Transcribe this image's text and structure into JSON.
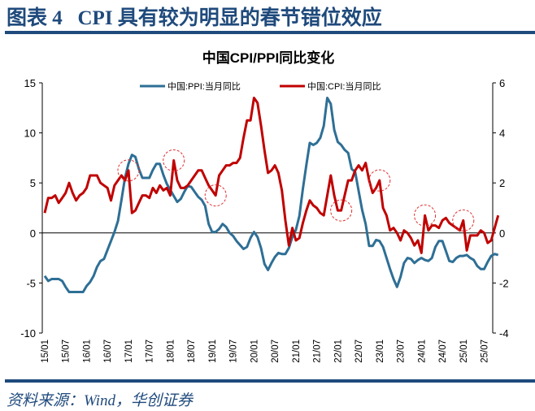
{
  "header": {
    "title": "图表 4   CPI 具有较为明显的春节错位效应"
  },
  "source": "资料来源：Wind，华创证券",
  "colors": {
    "ppi": "#2e6f95",
    "cpi": "#c00000",
    "brand": "#1f4a7c"
  },
  "chart_data": {
    "type": "line",
    "title": "中国CPI/PPI同比变化",
    "legend_position": "top",
    "x_start": "2015-01",
    "x_ticks": [
      "15/01",
      "15/07",
      "16/01",
      "16/07",
      "17/01",
      "17/07",
      "18/01",
      "18/07",
      "19/01",
      "19/07",
      "20/01",
      "20/07",
      "21/01",
      "21/07",
      "22/01",
      "22/07",
      "23/01",
      "23/07",
      "24/01",
      "24/07",
      "25/01",
      "25/07"
    ],
    "y_left": {
      "min": -10,
      "max": 15,
      "ticks": [
        "15",
        "10",
        "5",
        "0",
        "-5",
        "-10"
      ]
    },
    "y_right": {
      "min": -4,
      "max": 6,
      "ticks": [
        "6",
        "4",
        "2",
        "0",
        "-2",
        "-4"
      ]
    },
    "series": [
      {
        "name": "中国:PPI:当月同比",
        "axis": "left",
        "values": [
          -4.3,
          -4.8,
          -4.6,
          -4.6,
          -4.6,
          -4.8,
          -5.4,
          -5.9,
          -5.9,
          -5.9,
          -5.9,
          -5.9,
          -5.3,
          -4.9,
          -4.3,
          -3.4,
          -2.8,
          -2.6,
          -1.7,
          -0.8,
          0.1,
          1.2,
          3.3,
          5.5,
          6.9,
          7.8,
          7.6,
          6.4,
          5.5,
          5.5,
          5.5,
          6.3,
          6.9,
          6.9,
          5.8,
          4.9,
          4.3,
          3.7,
          3.1,
          3.4,
          4.1,
          4.7,
          4.6,
          4.1,
          3.6,
          3.3,
          2.7,
          0.9,
          0.1,
          0.1,
          0.4,
          0.9,
          0.6,
          0,
          -0.3,
          -0.8,
          -1.2,
          -1.6,
          -1.4,
          -0.5,
          0.1,
          -0.4,
          -1.5,
          -3.1,
          -3.7,
          -3.0,
          -2.4,
          -2.0,
          -2.1,
          -2.1,
          -1.5,
          -0.4,
          0.3,
          1.7,
          4.4,
          6.8,
          9.0,
          8.8,
          9.0,
          9.5,
          10.7,
          13.5,
          12.9,
          10.3,
          9.1,
          8.8,
          8.3,
          8.0,
          6.4,
          6.1,
          4.2,
          2.3,
          0.9,
          -1.3,
          -1.3,
          -0.7,
          -0.8,
          -1.4,
          -2.5,
          -3.6,
          -4.6,
          -5.4,
          -4.4,
          -3.0,
          -2.5,
          -2.6,
          -3.0,
          -2.7,
          -2.5,
          -2.7,
          -2.8,
          -2.5,
          -1.4,
          -0.8,
          -0.8,
          -1.8,
          -2.8,
          -2.9,
          -2.5,
          -2.3,
          -2.3,
          -2.2,
          -2.5,
          -2.7,
          -3.3,
          -3.6,
          -3.6,
          -2.9,
          -2.3,
          -2.1,
          -2.2
        ]
      },
      {
        "name": "中国:CPI:当月同比",
        "axis": "right",
        "values": [
          0.8,
          1.4,
          1.4,
          1.5,
          1.2,
          1.4,
          1.6,
          2.0,
          1.6,
          1.3,
          1.5,
          1.6,
          1.8,
          2.3,
          2.3,
          2.3,
          2.0,
          1.9,
          1.8,
          1.3,
          1.9,
          2.1,
          2.3,
          2.1,
          2.5,
          0.8,
          0.9,
          1.2,
          1.5,
          1.5,
          1.4,
          1.8,
          1.6,
          1.9,
          1.7,
          1.8,
          1.5,
          2.9,
          2.1,
          1.8,
          1.8,
          1.9,
          2.1,
          2.3,
          2.5,
          2.5,
          2.2,
          1.9,
          1.7,
          1.5,
          2.3,
          2.5,
          2.7,
          2.7,
          2.8,
          2.8,
          3.0,
          3.8,
          4.5,
          4.5,
          5.4,
          5.2,
          4.3,
          3.3,
          2.4,
          2.5,
          2.7,
          2.4,
          1.7,
          0.5,
          -0.5,
          0.2,
          -0.3,
          -0.2,
          0.4,
          0.9,
          1.3,
          1.1,
          1.0,
          0.8,
          0.7,
          1.5,
          2.3,
          1.5,
          0.9,
          0.9,
          1.5,
          2.1,
          2.1,
          2.5,
          2.7,
          2.5,
          2.8,
          2.1,
          1.6,
          1.8,
          2.1,
          1.0,
          0.7,
          0.1,
          0.2,
          0,
          -0.3,
          0.1,
          0,
          -0.2,
          -0.5,
          -0.3,
          -0.8,
          0.7,
          0.1,
          0.3,
          0.3,
          0.2,
          0.5,
          0.6,
          0.4,
          0.3,
          0.2,
          0.1,
          0.5,
          -0.7,
          -0.1,
          -0.1,
          -0.1,
          0.1,
          0,
          -0.4,
          -0.3,
          0.2,
          0.7
        ]
      }
    ],
    "highlights": [
      "2017-01",
      "2018-02",
      "2019-02",
      "2022-02",
      "2023-01",
      "2024-02",
      "2025-01"
    ],
    "grid": false
  }
}
